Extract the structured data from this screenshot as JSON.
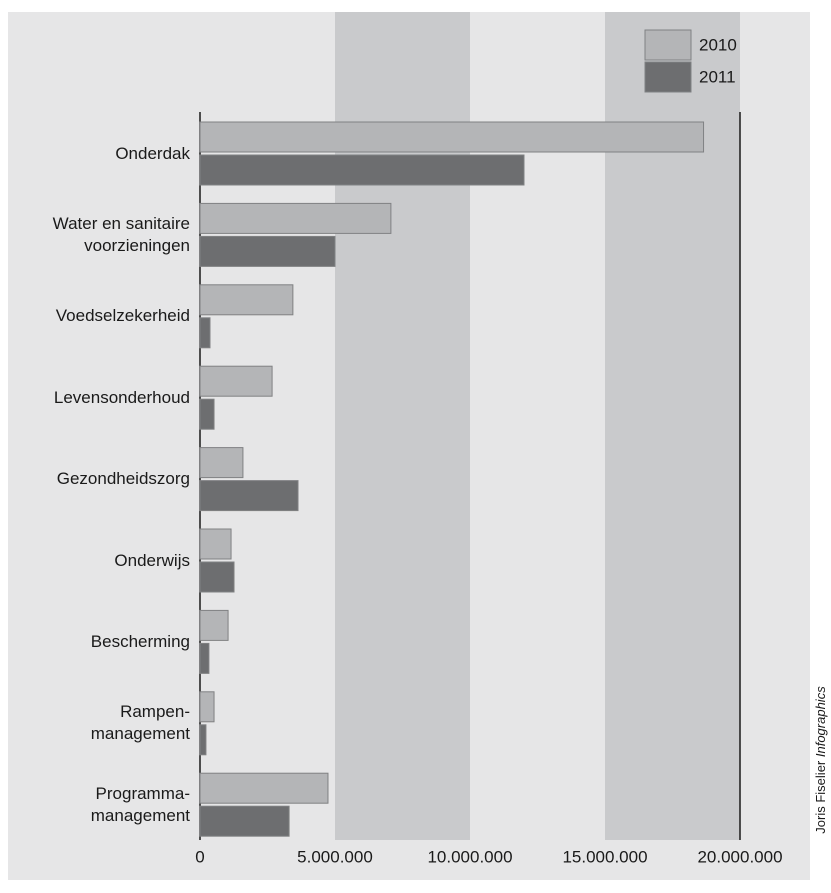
{
  "chart_data": {
    "type": "bar",
    "orientation": "horizontal",
    "categories": [
      "Onderdak",
      "Water en sanitaire\nvoorzieningen",
      "Voedselzekerheid",
      "Levensonderhoud",
      "Gezondheidszorg",
      "Onderwijs",
      "Bescherming",
      "Rampen-\nmanagement",
      "Programma-\nmanagement"
    ],
    "series": [
      {
        "name": "2010",
        "color": "#b4b5b7",
        "values": [
          18650000,
          7070000,
          3440000,
          2670000,
          1590000,
          1150000,
          1040000,
          520000,
          4740000
        ]
      },
      {
        "name": "2011",
        "color": "#6d6e70",
        "values": [
          12000000,
          5000000,
          370000,
          520000,
          3630000,
          1260000,
          330000,
          220000,
          3300000
        ]
      }
    ],
    "xlim": [
      0,
      20000000
    ],
    "xticks": [
      0,
      {
        "value": 5000000,
        "label": "5.000.000"
      },
      {
        "value": 10000000,
        "label": "10.000.000"
      },
      {
        "value": 15000000,
        "label": "15.000.000"
      },
      {
        "value": 20000000,
        "label": "20.000.000"
      }
    ],
    "legend_position": "top-right",
    "credit_name": "Joris Fiselier",
    "credit_suffix": "Infographics"
  }
}
